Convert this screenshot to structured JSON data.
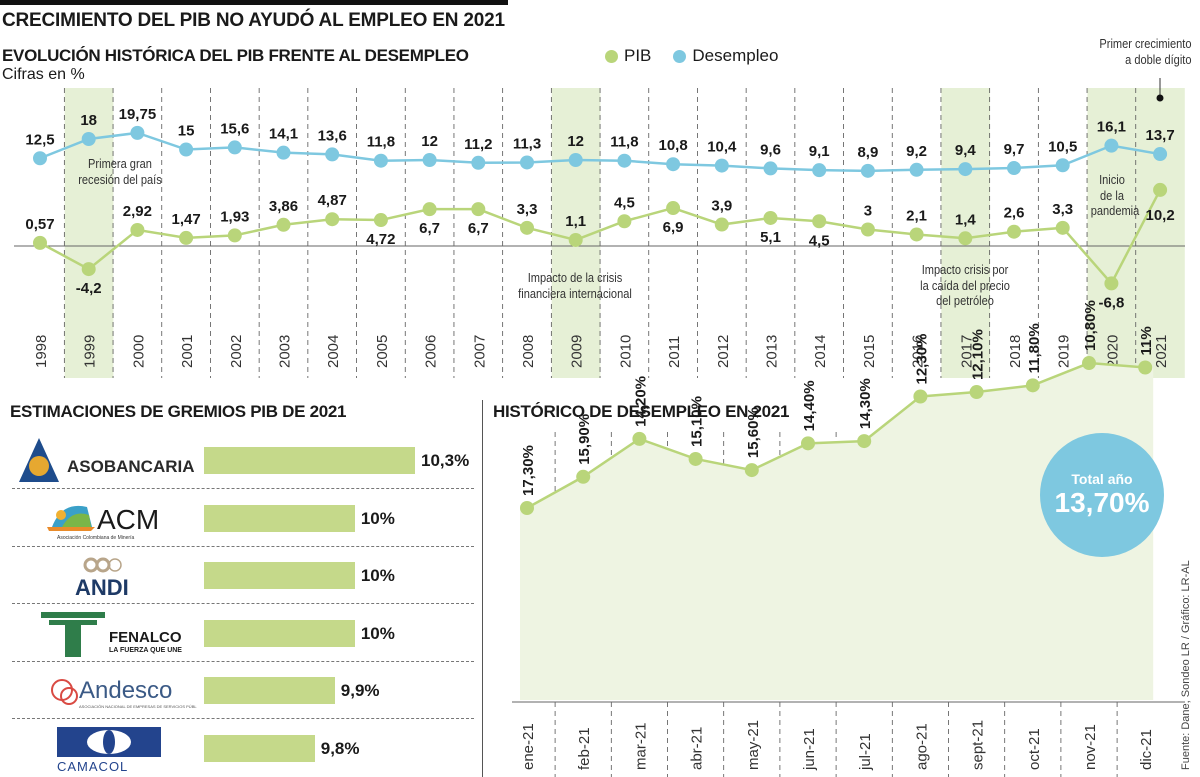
{
  "header": {
    "title": "CRECIMIENTO DEL PIB NO AYUDÓ AL EMPLEO EN 2021",
    "subtitle": "EVOLUCIÓN HISTÓRICA DEL PIB FRENTE AL DESEMPLEO",
    "units": "Cifras en %"
  },
  "legend": [
    {
      "label": "PIB",
      "color": "#b9d57a"
    },
    {
      "label": "Desempleo",
      "color": "#7ec8e0"
    }
  ],
  "annotations": {
    "recession_1999": [
      "Primera gran",
      "recesión del país"
    ],
    "crisis_2009": [
      "Impacto de la crisis",
      "financiera internacional"
    ],
    "oil_2017": [
      "Impacto crisis por",
      "la caída del precio",
      "del petróleo"
    ],
    "pandemic_2020": [
      "Inicio",
      "de la",
      "pandemia"
    ],
    "double_digit_2021": [
      "Primer crecimiento",
      "a doble dígito"
    ]
  },
  "chart_data": [
    {
      "type": "line",
      "title": "EVOLUCIÓN HISTÓRICA DEL PIB FRENTE AL DESEMPLEO",
      "subtitle": "Cifras en %",
      "x": [
        "1998",
        "1999",
        "2000",
        "2001",
        "2002",
        "2003",
        "2004",
        "2005",
        "2006",
        "2007",
        "2008",
        "2009",
        "2010",
        "2011",
        "2012",
        "2013",
        "2014",
        "2015",
        "2016",
        "2017",
        "2018",
        "2019",
        "2020",
        "2021"
      ],
      "highlighted_x": [
        "1999",
        "2009",
        "2017",
        "2020",
        "2021"
      ],
      "series": [
        {
          "name": "PIB",
          "color": "#b9d57a",
          "values": [
            0.57,
            -4.2,
            2.92,
            1.47,
            1.93,
            3.86,
            4.87,
            4.72,
            6.7,
            6.7,
            3.3,
            1.1,
            4.5,
            6.9,
            3.9,
            5.1,
            4.5,
            3,
            2.1,
            1.4,
            2.6,
            3.3,
            -6.8,
            10.2
          ],
          "labels": [
            "0,57",
            "-4,2",
            "2,92",
            "1,47",
            "1,93",
            "3,86",
            "4,87",
            "4,72",
            "6,7",
            "6,7",
            "3,3",
            "1,1",
            "4,5",
            "6,9",
            "3,9",
            "5,1",
            "4,5",
            "3",
            "2,1",
            "1,4",
            "2,6",
            "3,3",
            "-6,8",
            "10,2"
          ]
        },
        {
          "name": "Desempleo",
          "color": "#7ec8e0",
          "values": [
            12.5,
            18,
            19.75,
            15,
            15.6,
            14.1,
            13.6,
            11.8,
            12,
            11.2,
            11.3,
            12,
            11.8,
            10.8,
            10.4,
            9.6,
            9.1,
            8.9,
            9.2,
            9.4,
            9.7,
            10.5,
            16.1,
            13.7
          ],
          "labels": [
            "12,5",
            "18",
            "19,75",
            "15",
            "15,6",
            "14,1",
            "13,6",
            "11,8",
            "12",
            "11,2",
            "11,3",
            "12",
            "11,8",
            "10,8",
            "10,4",
            "9,6",
            "9,1",
            "8,9",
            "9,2",
            "9,4",
            "9,7",
            "10,5",
            "16,1",
            "13,7"
          ]
        }
      ],
      "baseline": 0,
      "grid": "vertical-dashed",
      "legend_position": "top-center"
    },
    {
      "type": "bar",
      "title": "ESTIMACIONES DE GREMIOS PIB DE 2021",
      "categories": [
        "ASOBANCARIA",
        "ACM",
        "ANDI",
        "FENALCO",
        "Andesco",
        "CAMACOL"
      ],
      "values": [
        10.3,
        10,
        10,
        10,
        9.9,
        9.8
      ],
      "labels": [
        "10,3%",
        "10%",
        "10%",
        "10%",
        "9,9%",
        "9,8%"
      ],
      "orientation": "horizontal",
      "color": "#c5d98a"
    },
    {
      "type": "area",
      "title": "HISTÓRICO DE DESEMPLEO EN 2021",
      "x": [
        "ene-21",
        "feb-21",
        "mar-21",
        "abr-21",
        "may-21",
        "jun-21",
        "jul-21",
        "ago-21",
        "sept-21",
        "oct-21",
        "nov-21",
        "dic-21"
      ],
      "values": [
        17.3,
        15.9,
        14.2,
        15.1,
        15.6,
        14.4,
        14.3,
        12.3,
        12.1,
        11.8,
        10.8,
        11
      ],
      "labels": [
        "17,30%",
        "15,90%",
        "14,20%",
        "15,10%",
        "15,60%",
        "14,40%",
        "14,30%",
        "12,30%",
        "12,10%",
        "11,80%",
        "10,80%",
        "11%"
      ],
      "annotation": {
        "label": "Total año",
        "value": "13,70%"
      },
      "color": "#b9d57a"
    }
  ],
  "gremios_logos": {
    "asobancaria": "ASOBANCARIA",
    "acm": "ACM",
    "acm_sub": "Asociación Colombiana de Minería",
    "andi": "ANDI",
    "fenalco": "FENALCO",
    "fenalco_sub": "LA FUERZA QUE UNE",
    "andesco": "Andesco",
    "andesco_sub": "ASOCIACIÓN NACIONAL DE EMPRESAS DE SERVICIOS PÚBLICOS Y COMUNICACIONES",
    "camacol": "CAMACOL"
  },
  "total_anio": {
    "label": "Total año",
    "value": "13,70%"
  },
  "source": "Fuente: Dane, Sondeo LR / Gráfico: LR-AL"
}
